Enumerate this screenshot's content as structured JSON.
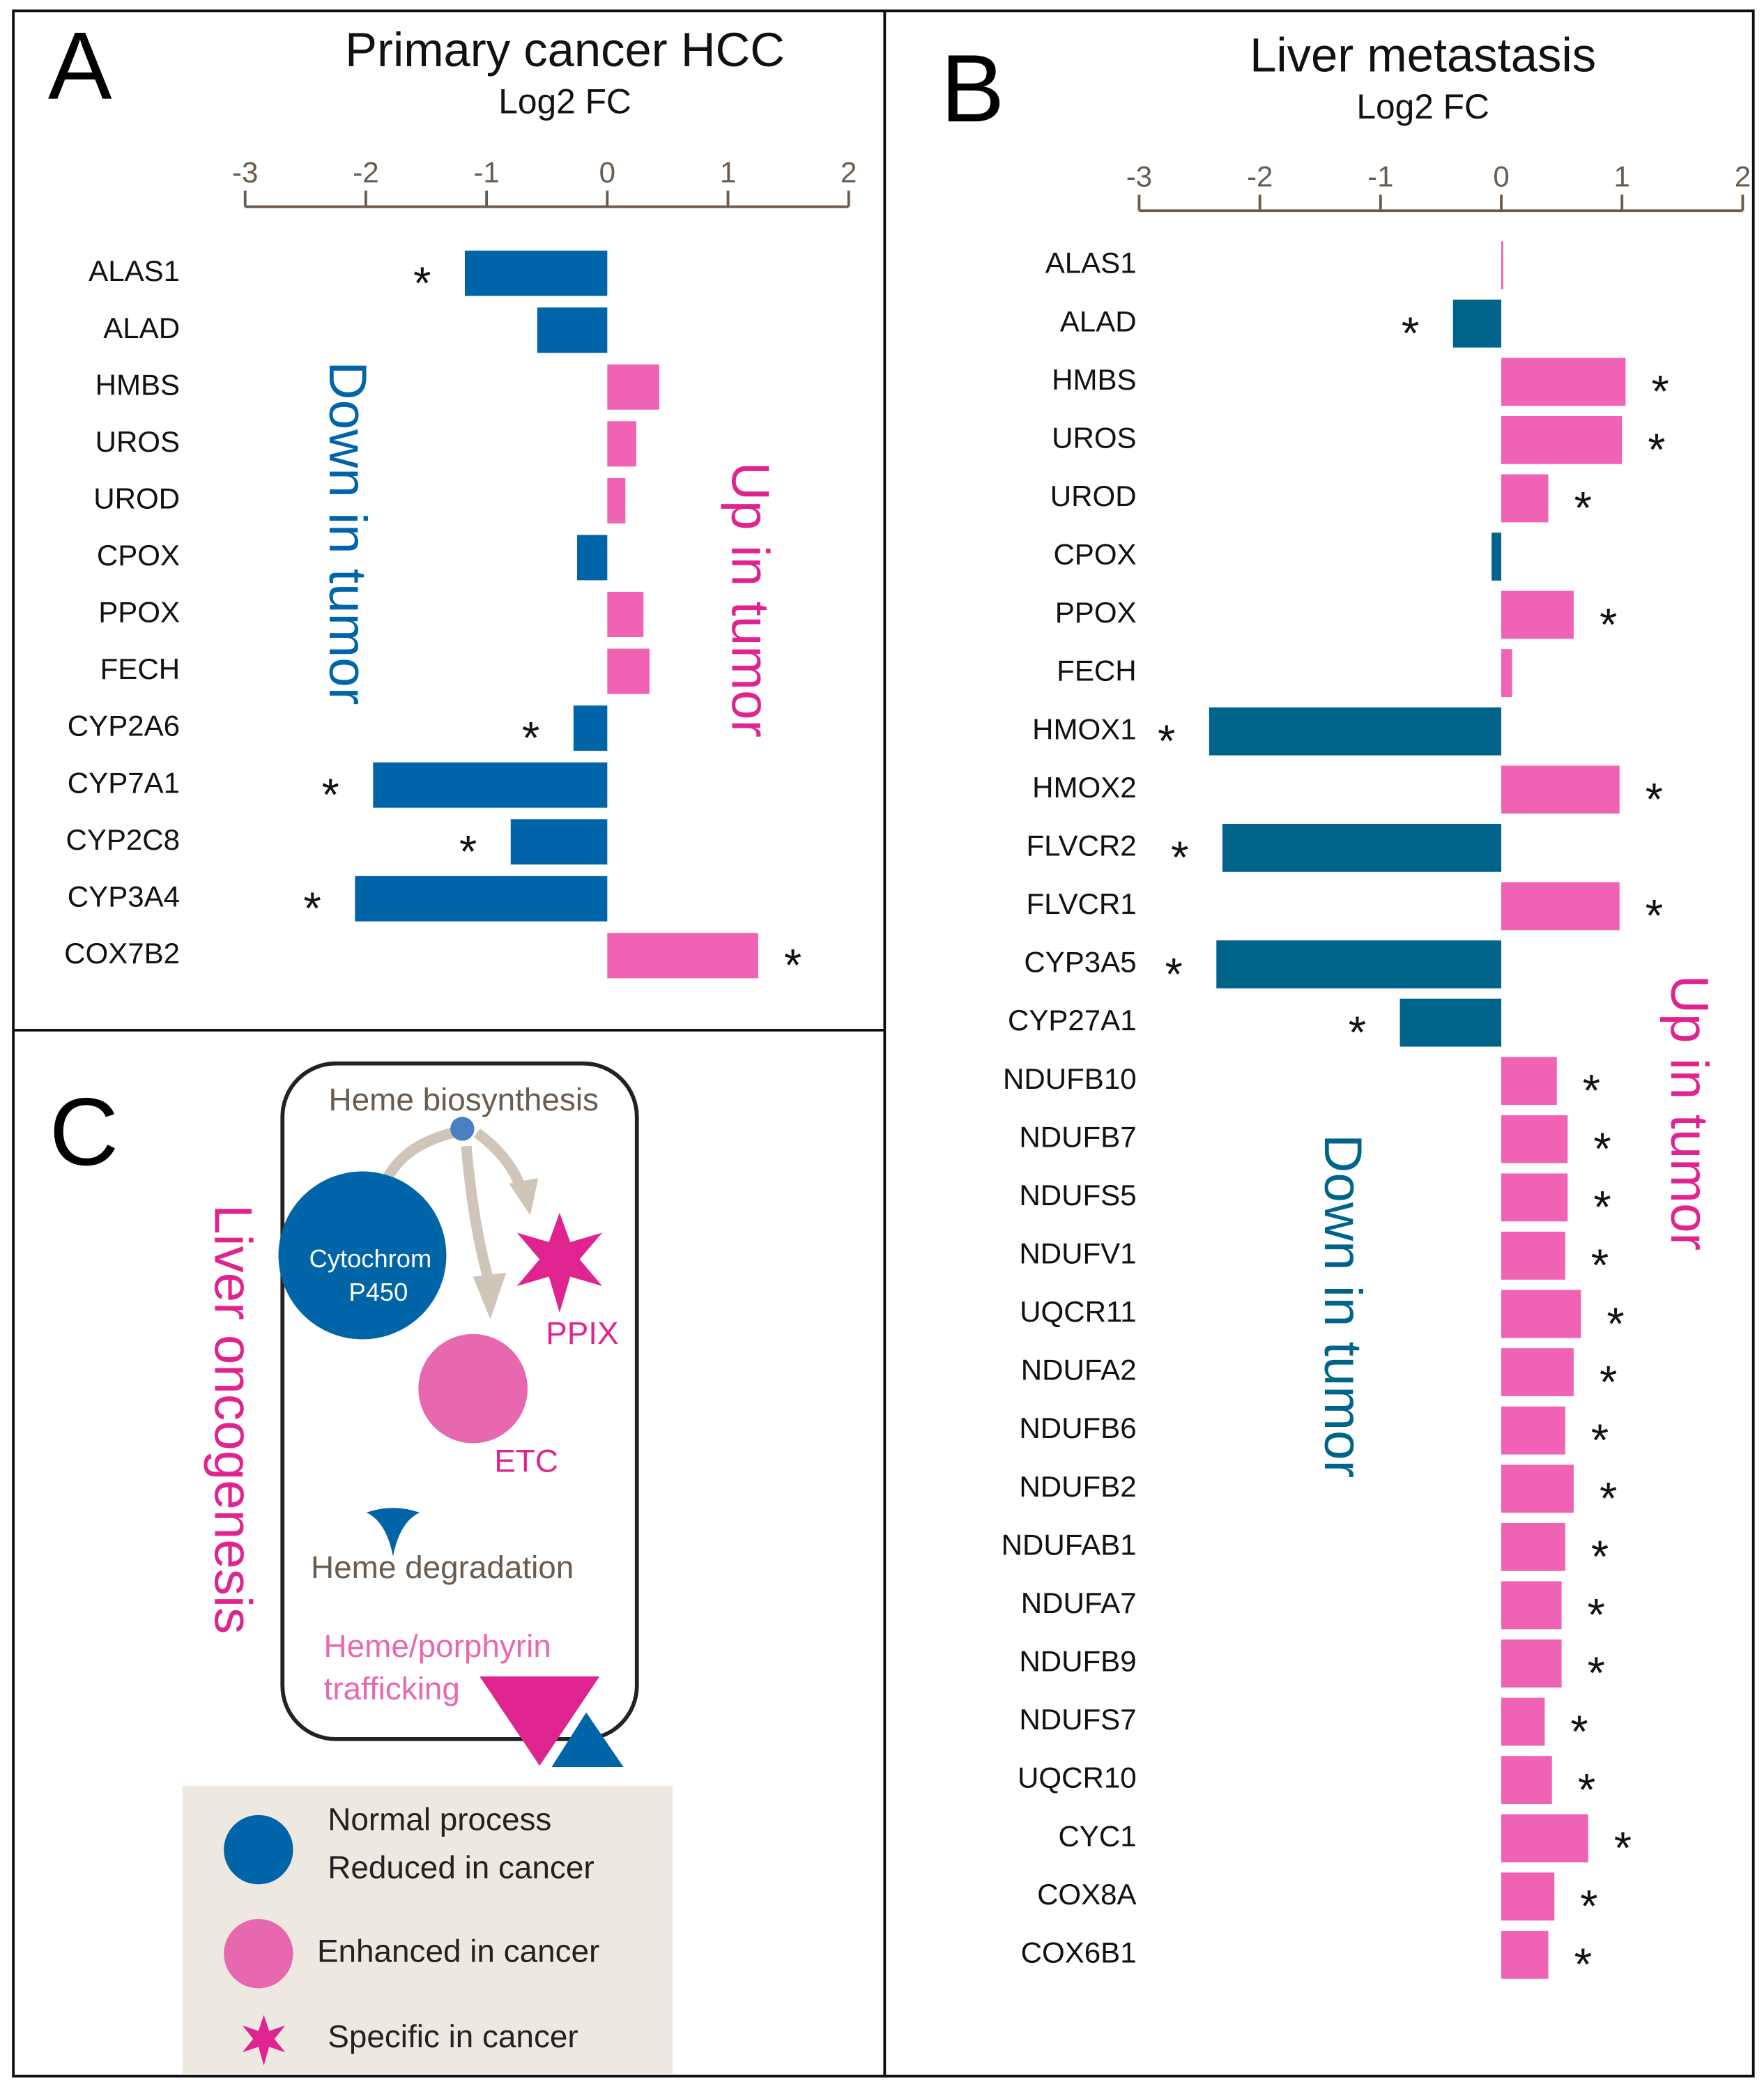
{
  "chart_data": [
    {
      "type": "bar",
      "orientation": "horizontal",
      "panel": "A",
      "title": "Primary cancer HCC",
      "xlabel": "Log2 FC",
      "categories": [
        "ALAS1",
        "ALAD",
        "HMBS",
        "UROS",
        "UROD",
        "CPOX",
        "PPOX",
        "FECH",
        "CYP2A6",
        "CYP7A1",
        "CYP2C8",
        "CYP3A4",
        "COX7B2"
      ],
      "values": [
        -1.18,
        -0.58,
        0.43,
        0.24,
        0.15,
        -0.25,
        0.3,
        0.35,
        -0.28,
        -1.94,
        -0.8,
        -2.09,
        1.25
      ],
      "significance": [
        "*",
        null,
        null,
        null,
        null,
        null,
        null,
        null,
        "*",
        "*",
        "*",
        "*",
        "*"
      ],
      "xlim": [
        -3,
        2
      ],
      "xticks": [
        -3,
        -2,
        -1,
        0,
        1,
        2
      ],
      "color_negative": "#0064a8",
      "color_positive": "#f062b4",
      "annotations": [
        "Down in tumor",
        "Up in tumor"
      ]
    },
    {
      "type": "bar",
      "orientation": "horizontal",
      "panel": "B",
      "title": "Liver metastasis",
      "xlabel": "Log2 FC",
      "categories": [
        "ALAS1",
        "ALAD",
        "HMBS",
        "UROS",
        "UROD",
        "CPOX",
        "PPOX",
        "FECH",
        "HMOX1",
        "HMOX2",
        "FLVCR2",
        "FLVCR1",
        "CYP3A5",
        "CYP27A1",
        "NDUFB10",
        "NDUFB7",
        "NDUFS5",
        "NDUFV1",
        "UQCR11",
        "NDUFA2",
        "NDUFB6",
        "NDUFB2",
        "NDUFAB1",
        "NDUFA7",
        "NDUFB9",
        "NDUFS7",
        "UQCR10",
        "CYC1",
        "COX8A",
        "COX6B1"
      ],
      "values": [
        0.01,
        -0.4,
        1.03,
        1.0,
        0.39,
        -0.08,
        0.6,
        0.09,
        -2.42,
        0.98,
        -2.31,
        0.98,
        -2.36,
        -0.84,
        0.46,
        0.55,
        0.55,
        0.53,
        0.66,
        0.6,
        0.53,
        0.6,
        0.53,
        0.5,
        0.5,
        0.36,
        0.42,
        0.72,
        0.44,
        0.39
      ],
      "significance": [
        null,
        "*",
        "*",
        "*",
        "*",
        null,
        "*",
        null,
        "*",
        "*",
        "*",
        "*",
        "*",
        "*",
        "*",
        "*",
        "*",
        "*",
        "*",
        "*",
        "*",
        "*",
        "*",
        "*",
        "*",
        "*",
        "*",
        "*",
        "*",
        "*"
      ],
      "xlim": [
        -3,
        2
      ],
      "xticks": [
        -3,
        -2,
        -1,
        0,
        1,
        2
      ],
      "color_negative": "#00648a",
      "color_positive": "#f062b4",
      "annotations": [
        "Down in tumor",
        "Up in tumor"
      ]
    }
  ],
  "diagram": {
    "panel": "C",
    "title": "Liver oncogenesis",
    "labels": {
      "synthesis": "Heme biosynthesis",
      "p450": [
        "Cytochrom",
        "P450"
      ],
      "ppix": "PPIX",
      "etc": "ETC",
      "degradation": "Heme degradation",
      "trafficking": [
        "Heme/porphyrin",
        "trafficking"
      ]
    },
    "legend": [
      [
        "Normal process",
        "Reduced in cancer"
      ],
      [
        "Enhanced in cancer"
      ],
      [
        "Specific in cancer"
      ]
    ]
  }
}
